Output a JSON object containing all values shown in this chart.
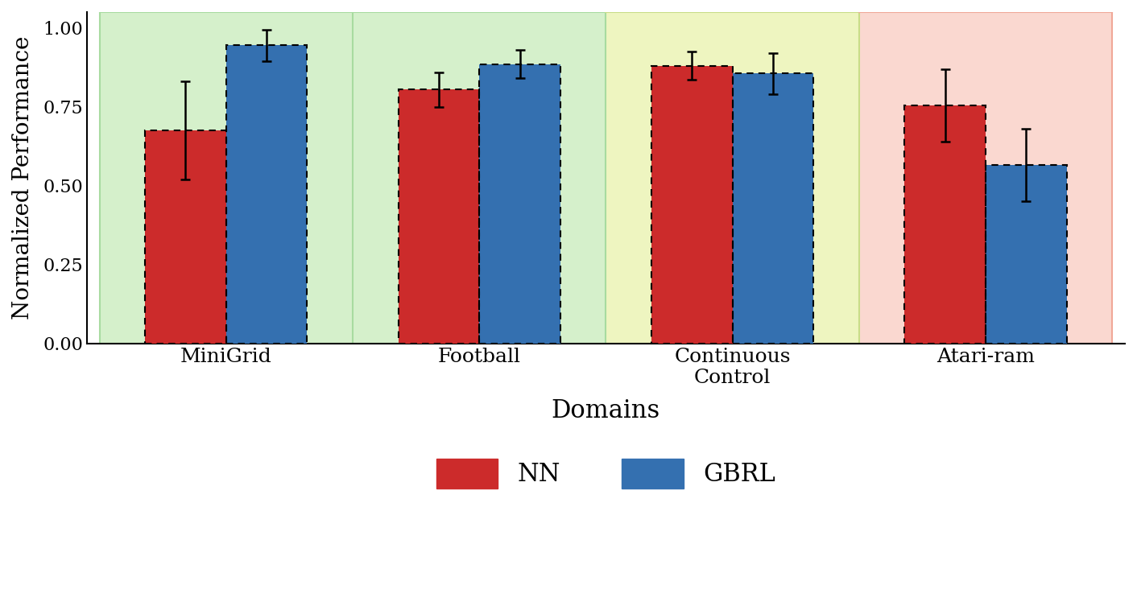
{
  "domains": [
    "MiniGrid",
    "Football",
    "Continuous\nControl",
    "Atari-ram"
  ],
  "nn_values": [
    0.675,
    0.805,
    0.88,
    0.755
  ],
  "gbrl_values": [
    0.945,
    0.885,
    0.855,
    0.565
  ],
  "nn_errors": [
    0.155,
    0.055,
    0.045,
    0.115
  ],
  "gbrl_errors": [
    0.05,
    0.045,
    0.065,
    0.115
  ],
  "nn_color": "#cc2b2b",
  "gbrl_color": "#3470b0",
  "bar_width": 0.32,
  "bg_colors": [
    "#d5f0cb",
    "#d5f0cb",
    "#eef5c0",
    "#fad8d0"
  ],
  "bg_border_colors": [
    "#a8dba0",
    "#a8dba0",
    "#c8dd88",
    "#f0a898"
  ],
  "ylabel": "Normalized Performance",
  "xlabel": "Domains",
  "ylim": [
    0.0,
    1.05
  ],
  "yticks": [
    0.0,
    0.25,
    0.5,
    0.75,
    1.0
  ],
  "legend_labels": [
    "NN",
    "GBRL"
  ],
  "figsize": [
    14.12,
    7.58
  ],
  "dpi": 100,
  "group_boundaries": [
    -0.5,
    0.5,
    1.5,
    2.5,
    3.5
  ]
}
